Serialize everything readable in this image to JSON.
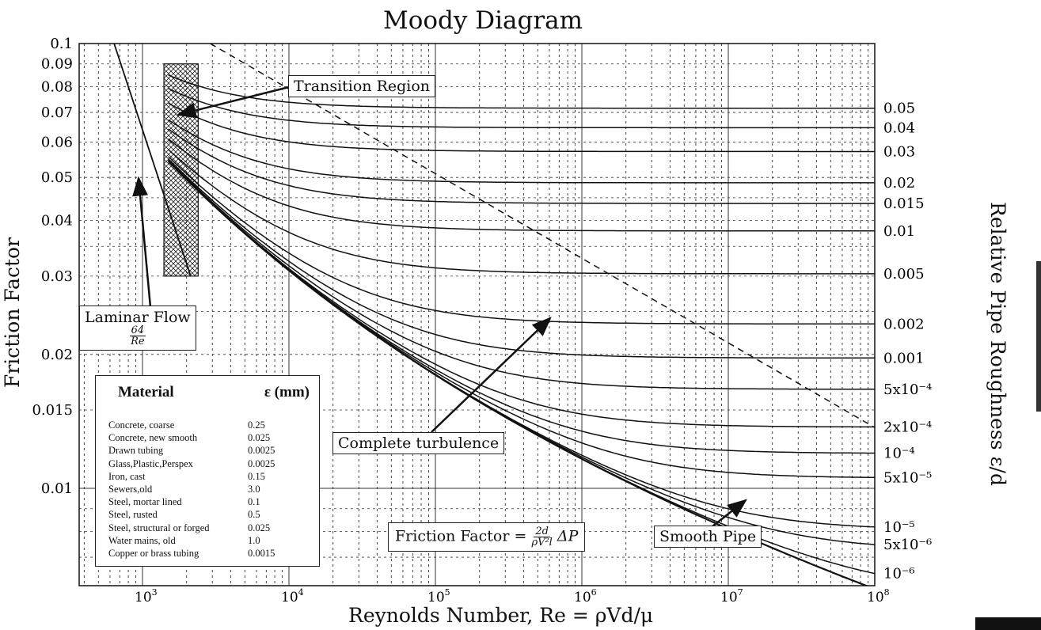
{
  "chart_data": {
    "type": "line",
    "title": "Moody Diagram",
    "xlabel": "Reynolds Number, Re = ρVd/μ",
    "ylabel": "Friction Factor",
    "y2label": "Relative Pipe Roughness ε/d",
    "x_scale": "log",
    "y_scale": "log",
    "xlim": [
      400,
      100000000
    ],
    "ylim": [
      0.006,
      0.1
    ],
    "grid": true,
    "x_ticks": [
      {
        "value": 1000,
        "label": "10",
        "exp": "3"
      },
      {
        "value": 10000,
        "label": "10",
        "exp": "4"
      },
      {
        "value": 100000,
        "label": "10",
        "exp": "5"
      },
      {
        "value": 1000000,
        "label": "10",
        "exp": "6"
      },
      {
        "value": 10000000,
        "label": "10",
        "exp": "7"
      },
      {
        "value": 100000000,
        "label": "10",
        "exp": "8"
      }
    ],
    "y_ticks": [
      {
        "value": 0.1,
        "label": "0.1"
      },
      {
        "value": 0.09,
        "label": "0.09"
      },
      {
        "value": 0.08,
        "label": "0.08"
      },
      {
        "value": 0.07,
        "label": "0.07"
      },
      {
        "value": 0.06,
        "label": "0.06"
      },
      {
        "value": 0.05,
        "label": "0.05"
      },
      {
        "value": 0.04,
        "label": "0.04"
      },
      {
        "value": 0.03,
        "label": "0.03"
      },
      {
        "value": 0.02,
        "label": "0.02"
      },
      {
        "value": 0.015,
        "label": "0.015"
      },
      {
        "value": 0.01,
        "label": "0.01"
      }
    ],
    "laminar": {
      "formula": "64/Re",
      "points": [
        [
          640,
          0.1
        ],
        [
          2133,
          0.03
        ]
      ]
    },
    "transition_region": {
      "re_range": [
        1400,
        2400
      ],
      "f_range": [
        0.03,
        0.09
      ]
    },
    "complete_turbulence_line": {
      "points": [
        [
          2900,
          0.1
        ],
        [
          100000000,
          0.0137
        ]
      ]
    },
    "turbulent_relation": "Colebrook",
    "turbulent_re_range": [
      1500,
      100000000
    ],
    "series": [
      {
        "name": "0.05",
        "roughness": 0.05
      },
      {
        "name": "0.04",
        "roughness": 0.04
      },
      {
        "name": "0.03",
        "roughness": 0.03
      },
      {
        "name": "0.02",
        "roughness": 0.02
      },
      {
        "name": "0.015",
        "roughness": 0.015
      },
      {
        "name": "0.01",
        "roughness": 0.01
      },
      {
        "name": "0.005",
        "roughness": 0.005
      },
      {
        "name": "0.002",
        "roughness": 0.002
      },
      {
        "name": "0.001",
        "roughness": 0.001
      },
      {
        "name": "5x10⁻⁴",
        "roughness": 0.0005
      },
      {
        "name": "2x10⁻⁴",
        "roughness": 0.0002
      },
      {
        "name": "10⁻⁴",
        "roughness": 0.0001
      },
      {
        "name": "5x10⁻⁵",
        "roughness": 5e-05
      },
      {
        "name": "10⁻⁵",
        "roughness": 1e-05
      },
      {
        "name": "5x10⁻⁶",
        "roughness": 5e-06
      },
      {
        "name": "10⁻⁶",
        "roughness": 1e-06
      },
      {
        "name": "",
        "roughness": 0
      }
    ]
  },
  "annotations": {
    "transition_region": "Transition Region",
    "laminar_flow": "Laminar Flow",
    "laminar_num": "64",
    "laminar_den": "Re",
    "complete_turbulence": "Complete turbulence",
    "friction_factor_prefix": "Friction Factor =",
    "friction_factor_num": "2d",
    "friction_factor_den": "ρV²l",
    "friction_factor_suffix": "ΔP",
    "smooth_pipe": "Smooth Pipe"
  },
  "material_table": {
    "headers": [
      "Material",
      "ε (mm)"
    ],
    "rows": [
      [
        "Concrete, coarse",
        "0.25"
      ],
      [
        "Concrete, new smooth",
        "0.025"
      ],
      [
        "Drawn tubing",
        "0.0025"
      ],
      [
        "Glass,Plastic,Perspex",
        "0.0025"
      ],
      [
        "Iron, cast",
        "0.15"
      ],
      [
        "Sewers,old",
        "3.0"
      ],
      [
        "Steel, mortar lined",
        "0.1"
      ],
      [
        "Steel, rusted",
        "0.5"
      ],
      [
        "Steel, structural or forged",
        "0.025"
      ],
      [
        "Water mains, old",
        "1.0"
      ],
      [
        "Copper or brass tubing",
        "0.0015"
      ]
    ]
  }
}
